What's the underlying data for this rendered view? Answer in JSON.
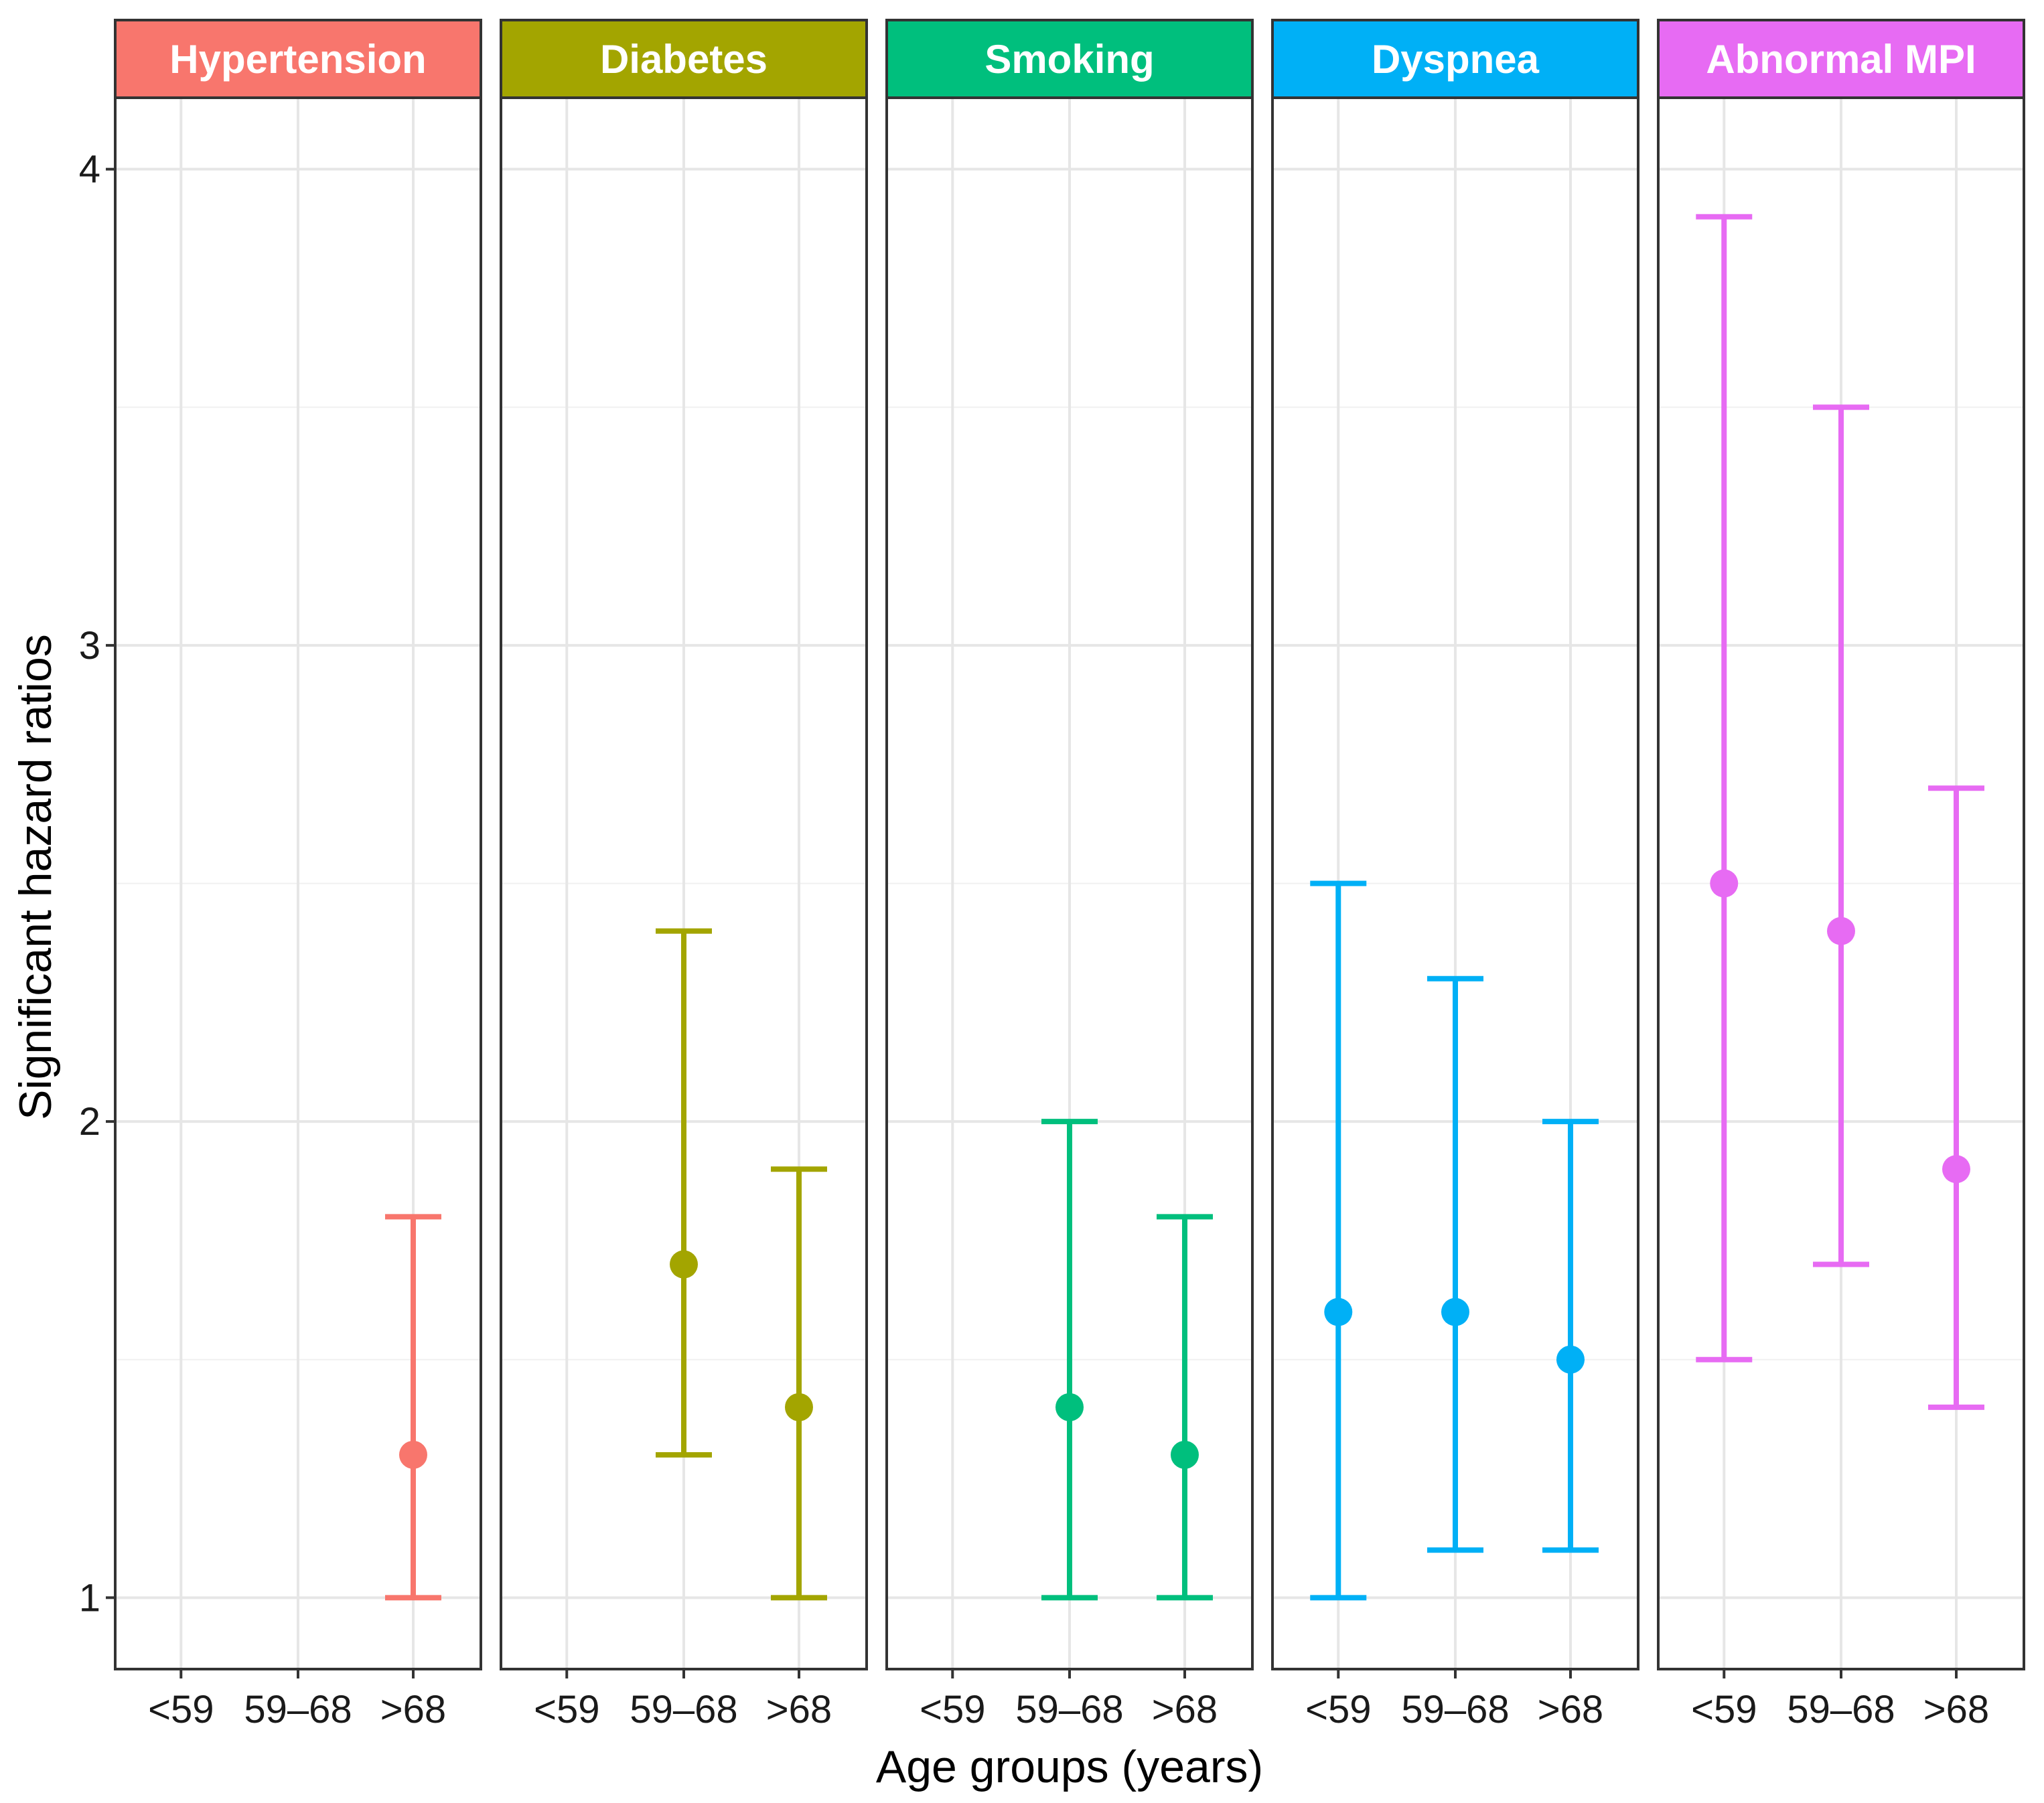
{
  "chart_data": {
    "type": "errorbar",
    "xlabel": "Age groups (years)",
    "ylabel": "Significant hazard ratios",
    "categories": [
      "<59",
      "59–68",
      ">68"
    ],
    "ylim": [
      0.85,
      4.15
    ],
    "yticks": [
      1,
      2,
      3,
      4
    ],
    "ytick_labels": [
      "1",
      "2",
      "3",
      "4"
    ],
    "grid": true,
    "facets": [
      {
        "name": "Hypertension",
        "color": "#F8766D",
        "points": [
          {
            "category": ">68",
            "estimate": 1.3,
            "lower": 1.0,
            "upper": 1.8
          }
        ]
      },
      {
        "name": "Diabetes",
        "color": "#A3A500",
        "points": [
          {
            "category": "59–68",
            "estimate": 1.7,
            "lower": 1.3,
            "upper": 2.4
          },
          {
            "category": ">68",
            "estimate": 1.4,
            "lower": 1.0,
            "upper": 1.9
          }
        ]
      },
      {
        "name": "Smoking",
        "color": "#00BF7D",
        "points": [
          {
            "category": "59–68",
            "estimate": 1.4,
            "lower": 1.0,
            "upper": 2.0
          },
          {
            "category": ">68",
            "estimate": 1.3,
            "lower": 1.0,
            "upper": 1.8
          }
        ]
      },
      {
        "name": "Dyspnea",
        "color": "#00B0F6",
        "points": [
          {
            "category": "<59",
            "estimate": 1.6,
            "lower": 1.0,
            "upper": 2.5
          },
          {
            "category": "59–68",
            "estimate": 1.6,
            "lower": 1.1,
            "upper": 2.3
          },
          {
            "category": ">68",
            "estimate": 1.5,
            "lower": 1.1,
            "upper": 2.0
          }
        ]
      },
      {
        "name": "Abnormal MPI",
        "color": "#E76BF3",
        "points": [
          {
            "category": "<59",
            "estimate": 2.5,
            "lower": 1.5,
            "upper": 3.9
          },
          {
            "category": "59–68",
            "estimate": 2.4,
            "lower": 1.7,
            "upper": 3.5
          },
          {
            "category": ">68",
            "estimate": 1.9,
            "lower": 1.4,
            "upper": 2.7
          }
        ]
      }
    ]
  }
}
